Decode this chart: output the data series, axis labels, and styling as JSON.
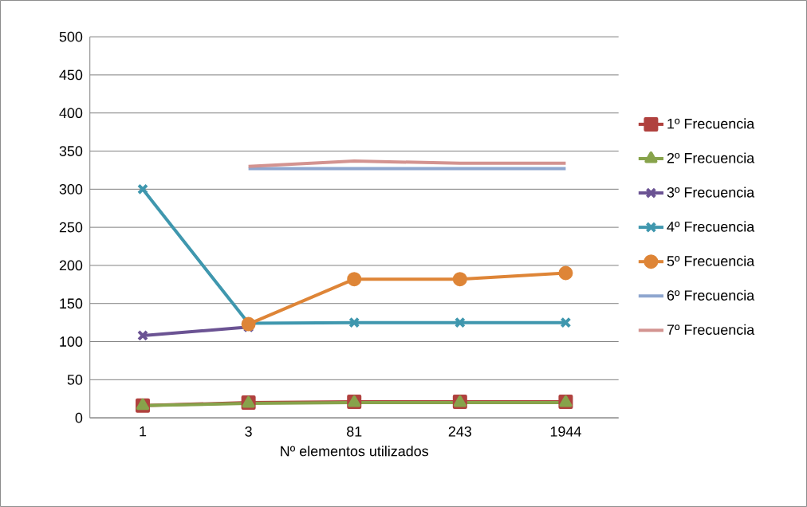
{
  "chart_data": {
    "type": "line",
    "xlabel": "Nº elementos utilizados",
    "categories": [
      "1",
      "3",
      "81",
      "243",
      "1944"
    ],
    "series": [
      {
        "name": "1º Frecuencia",
        "color": "#b0413e",
        "marker": "square",
        "values": [
          16,
          20,
          21,
          21,
          21
        ]
      },
      {
        "name": "2º Frecuencia",
        "color": "#87a34b",
        "marker": "triangle",
        "values": [
          16,
          19,
          20,
          20,
          20
        ]
      },
      {
        "name": "3º Frecuencia",
        "color": "#6b5393",
        "marker": "cross",
        "values": [
          108,
          119,
          null,
          null,
          null
        ]
      },
      {
        "name": "4º Frecuencia",
        "color": "#3f97ae",
        "marker": "cross",
        "values": [
          300,
          124,
          125,
          125,
          125
        ]
      },
      {
        "name": "5º Frecuencia",
        "color": "#de8537",
        "marker": "circle",
        "values": [
          null,
          123,
          182,
          182,
          190
        ]
      },
      {
        "name": "6º Frecuencia",
        "color": "#8ea6cf",
        "marker": "none",
        "values": [
          null,
          327,
          327,
          327,
          327
        ]
      },
      {
        "name": "7º Frecuencia",
        "color": "#d39390",
        "marker": "none",
        "values": [
          null,
          330,
          337,
          334,
          334
        ]
      }
    ],
    "ylim": [
      0,
      500
    ],
    "yticks": [
      0,
      50,
      100,
      150,
      200,
      250,
      300,
      350,
      400,
      450,
      500
    ],
    "grid": "y",
    "legend": "right"
  }
}
